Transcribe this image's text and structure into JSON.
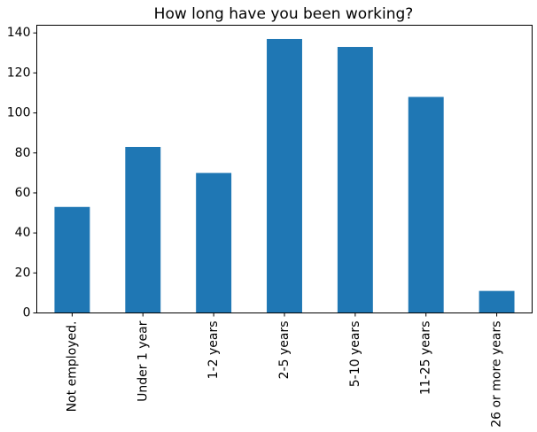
{
  "chart_data": {
    "type": "bar",
    "title": "How long have you been working?",
    "xlabel": "",
    "ylabel": "",
    "categories": [
      "Not employed.",
      "Under 1 year",
      "1-2 years",
      "2-5 years",
      "5-10 years",
      "11-25 years",
      "26 or more years"
    ],
    "values": [
      53,
      83,
      70,
      137,
      133,
      108,
      11
    ],
    "ylim": [
      0,
      143.85
    ],
    "yticks": [
      0,
      20,
      40,
      60,
      80,
      100,
      120,
      140
    ],
    "grid": false,
    "legend": "none",
    "bar_color": "#1f77b4"
  }
}
